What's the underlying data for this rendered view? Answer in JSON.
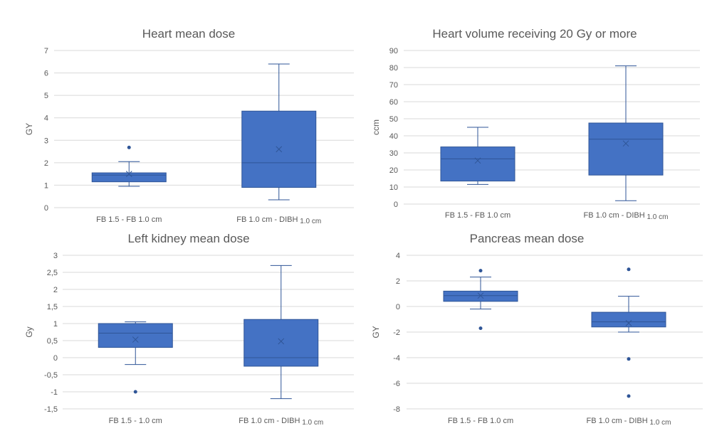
{
  "chart_data": [
    {
      "type": "box",
      "title": "Heart mean dose",
      "ylabel": "GY",
      "ylim": [
        0,
        7
      ],
      "yticks": [
        "0",
        "1",
        "2",
        "3",
        "4",
        "5",
        "6",
        "7"
      ],
      "categories": [
        {
          "main": "FB 1.5 - FB 1.0 cm",
          "sub": ""
        },
        {
          "main": "FB 1.0 cm - DIBH",
          "sub": "1.0 cm"
        }
      ],
      "boxes": [
        {
          "min": 0.95,
          "q1": 1.15,
          "median": 1.45,
          "q3": 1.55,
          "max": 2.05,
          "mean": 1.5,
          "outliers": [
            2.68
          ]
        },
        {
          "min": 0.35,
          "q1": 0.9,
          "median": 2.0,
          "q3": 4.3,
          "max": 6.4,
          "mean": 2.6,
          "outliers": []
        }
      ]
    },
    {
      "type": "box",
      "title": "Heart volume receiving 20 Gy or more",
      "ylabel": "ccm",
      "ylim": [
        0,
        90
      ],
      "yticks": [
        "0",
        "10",
        "20",
        "30",
        "40",
        "50",
        "60",
        "70",
        "80",
        "90"
      ],
      "categories": [
        {
          "main": "FB 1.5 - FB 1.0 cm",
          "sub": ""
        },
        {
          "main": "FB 1.0 cm - DIBH",
          "sub": "1.0 cm"
        }
      ],
      "boxes": [
        {
          "min": 11.5,
          "q1": 13.5,
          "median": 26.5,
          "q3": 33.5,
          "max": 45,
          "mean": 25.5,
          "outliers": []
        },
        {
          "min": 2,
          "q1": 17,
          "median": 38,
          "q3": 47.5,
          "max": 81,
          "mean": 35.5,
          "outliers": []
        }
      ]
    },
    {
      "type": "box",
      "title": "Left kidney mean dose",
      "ylabel": "Gy",
      "ylim": [
        -1.5,
        3
      ],
      "yticks": [
        "-1,5",
        "-1",
        "-0,5",
        "0",
        "0,5",
        "1",
        "1,5",
        "2",
        "2,5",
        "3"
      ],
      "categories": [
        {
          "main": "FB 1.5 - 1.0 cm",
          "sub": ""
        },
        {
          "main": "FB 1.0 cm - DIBH",
          "sub": "1.0 cm"
        }
      ],
      "boxes": [
        {
          "min": -0.2,
          "q1": 0.3,
          "median": 0.72,
          "q3": 1.0,
          "max": 1.05,
          "mean": 0.53,
          "outliers": [
            -1.0
          ]
        },
        {
          "min": -1.2,
          "q1": -0.25,
          "median": 0.0,
          "q3": 1.12,
          "max": 2.7,
          "mean": 0.48,
          "outliers": []
        }
      ]
    },
    {
      "type": "box",
      "title": "Pancreas mean dose",
      "ylabel": "GY",
      "ylim": [
        -8,
        4
      ],
      "yticks": [
        "-8",
        "-6",
        "-4",
        "-2",
        "0",
        "2",
        "4"
      ],
      "categories": [
        {
          "main": "FB 1.5 - FB 1.0 cm",
          "sub": ""
        },
        {
          "main": "FB 1.0 cm - DIBH",
          "sub": "1.0 cm"
        }
      ],
      "boxes": [
        {
          "min": -0.2,
          "q1": 0.4,
          "median": 0.85,
          "q3": 1.2,
          "max": 2.3,
          "mean": 0.85,
          "outliers": [
            2.8,
            -1.7
          ]
        },
        {
          "min": -2.0,
          "q1": -1.6,
          "median": -1.2,
          "q3": -0.45,
          "max": 0.8,
          "mean": -1.3,
          "outliers": [
            2.9,
            -4.1,
            -7.0
          ]
        }
      ]
    }
  ]
}
